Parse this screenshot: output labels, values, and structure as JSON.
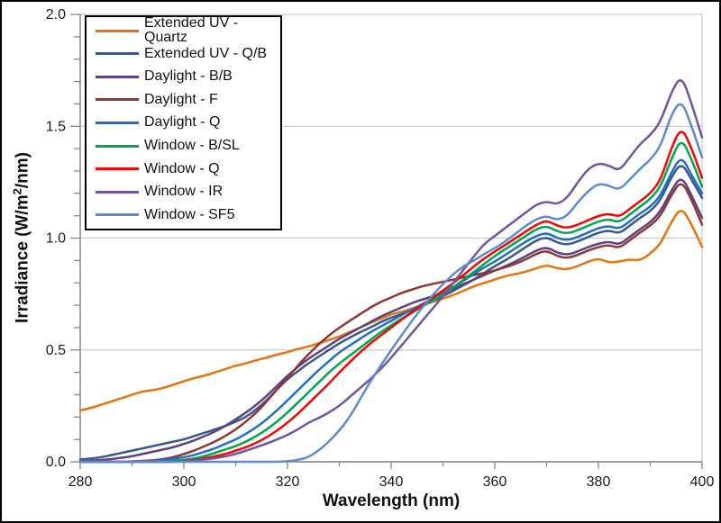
{
  "chart_data": {
    "type": "line",
    "title": "",
    "xlabel": "Wavelength (nm)",
    "ylabel": "Irradiance (W/m²/nm)",
    "ylabel_parts": {
      "pre": "Irradiance (W/m",
      "sup": "2",
      "post": "/nm)"
    },
    "xlim": [
      280,
      400
    ],
    "ylim": [
      0.0,
      2.0
    ],
    "x_major_ticks": [
      280,
      300,
      320,
      340,
      360,
      380,
      400
    ],
    "x_tick_labels": [
      "280",
      "300",
      "320",
      "340",
      "360",
      "380",
      "400"
    ],
    "x_minor_step": 10,
    "y_major_ticks": [
      0.0,
      0.5,
      1.0,
      1.5,
      2.0
    ],
    "y_tick_labels": [
      "0.0",
      "0.5",
      "1.0",
      "1.5",
      "2.0"
    ],
    "y_minor_step": 0.1,
    "grid": "horizontal-major-only",
    "legend_position": "upper-left-inside",
    "colors": {
      "axis": "#7f7f7f",
      "grid": "#c9c9c9",
      "tick_text": "#1a1a1a"
    },
    "x_start": 280,
    "x_step": 2,
    "series": [
      {
        "name": "Extended UV - Quartz",
        "color": "#e8730c",
        "values": [
          0.23,
          0.24,
          0.255,
          0.27,
          0.285,
          0.3,
          0.315,
          0.32,
          0.33,
          0.345,
          0.36,
          0.375,
          0.385,
          0.4,
          0.415,
          0.43,
          0.44,
          0.455,
          0.465,
          0.48,
          0.49,
          0.505,
          0.515,
          0.53,
          0.545,
          0.56,
          0.58,
          0.6,
          0.62,
          0.64,
          0.66,
          0.67,
          0.685,
          0.7,
          0.715,
          0.73,
          0.745,
          0.765,
          0.785,
          0.8,
          0.815,
          0.83,
          0.84,
          0.85,
          0.865,
          0.88,
          0.865,
          0.86,
          0.875,
          0.895,
          0.91,
          0.89,
          0.895,
          0.905,
          0.9,
          0.93,
          0.975,
          1.07,
          1.14,
          1.06,
          0.96
        ]
      },
      {
        "name": "Extended UV - Q/B",
        "color": "#38588f",
        "values": [
          0.01,
          0.015,
          0.02,
          0.03,
          0.04,
          0.05,
          0.06,
          0.07,
          0.08,
          0.09,
          0.1,
          0.115,
          0.13,
          0.145,
          0.16,
          0.18,
          0.2,
          0.235,
          0.275,
          0.325,
          0.37,
          0.405,
          0.44,
          0.47,
          0.5,
          0.53,
          0.555,
          0.58,
          0.6,
          0.625,
          0.645,
          0.66,
          0.68,
          0.7,
          0.72,
          0.74,
          0.765,
          0.79,
          0.815,
          0.845,
          0.875,
          0.9,
          0.93,
          0.96,
          0.99,
          1.005,
          0.98,
          0.97,
          0.985,
          1.005,
          1.025,
          1.035,
          1.02,
          1.055,
          1.09,
          1.12,
          1.17,
          1.27,
          1.34,
          1.26,
          1.18
        ]
      },
      {
        "name": "Daylight - B/B",
        "color": "#5c4282",
        "values": [
          0.0,
          0.005,
          0.008,
          0.012,
          0.018,
          0.025,
          0.035,
          0.045,
          0.055,
          0.065,
          0.08,
          0.095,
          0.115,
          0.135,
          0.16,
          0.19,
          0.22,
          0.255,
          0.295,
          0.34,
          0.385,
          0.425,
          0.46,
          0.49,
          0.52,
          0.55,
          0.575,
          0.6,
          0.625,
          0.65,
          0.67,
          0.69,
          0.71,
          0.725,
          0.74,
          0.755,
          0.775,
          0.795,
          0.815,
          0.835,
          0.855,
          0.875,
          0.895,
          0.92,
          0.945,
          0.96,
          0.935,
          0.925,
          0.94,
          0.96,
          0.975,
          0.985,
          0.97,
          1.005,
          1.04,
          1.07,
          1.12,
          1.21,
          1.28,
          1.19,
          1.09
        ]
      },
      {
        "name": "Daylight - F",
        "color": "#903634",
        "values": [
          0,
          0,
          0,
          0,
          0,
          0.002,
          0.004,
          0.006,
          0.012,
          0.02,
          0.035,
          0.05,
          0.07,
          0.09,
          0.115,
          0.145,
          0.18,
          0.22,
          0.27,
          0.325,
          0.375,
          0.43,
          0.48,
          0.525,
          0.565,
          0.6,
          0.63,
          0.66,
          0.69,
          0.715,
          0.735,
          0.755,
          0.77,
          0.785,
          0.795,
          0.805,
          0.815,
          0.825,
          0.835,
          0.845,
          0.855,
          0.87,
          0.885,
          0.905,
          0.93,
          0.945,
          0.92,
          0.91,
          0.925,
          0.945,
          0.96,
          0.97,
          0.955,
          0.99,
          1.025,
          1.055,
          1.1,
          1.19,
          1.26,
          1.17,
          1.06
        ]
      },
      {
        "name": "Daylight - Q",
        "color": "#1f6fc5",
        "values": [
          0,
          0,
          0,
          0,
          0,
          0,
          0.002,
          0.004,
          0.008,
          0.013,
          0.02,
          0.03,
          0.045,
          0.06,
          0.08,
          0.1,
          0.125,
          0.155,
          0.19,
          0.23,
          0.275,
          0.32,
          0.365,
          0.41,
          0.45,
          0.49,
          0.52,
          0.55,
          0.58,
          0.605,
          0.63,
          0.655,
          0.68,
          0.705,
          0.73,
          0.755,
          0.78,
          0.81,
          0.84,
          0.87,
          0.895,
          0.925,
          0.955,
          0.985,
          1.01,
          1.025,
          1.0,
          0.99,
          1.005,
          1.025,
          1.045,
          1.055,
          1.04,
          1.075,
          1.11,
          1.14,
          1.19,
          1.29,
          1.37,
          1.28,
          1.2
        ]
      },
      {
        "name": "Window - B/SL",
        "color": "#00a550",
        "values": [
          0,
          0,
          0,
          0,
          0,
          0,
          0,
          0,
          0,
          0.004,
          0.008,
          0.015,
          0.025,
          0.04,
          0.055,
          0.07,
          0.09,
          0.115,
          0.145,
          0.18,
          0.22,
          0.265,
          0.31,
          0.355,
          0.4,
          0.44,
          0.475,
          0.51,
          0.545,
          0.58,
          0.61,
          0.64,
          0.665,
          0.695,
          0.72,
          0.75,
          0.78,
          0.815,
          0.85,
          0.885,
          0.92,
          0.95,
          0.98,
          1.01,
          1.04,
          1.055,
          1.03,
          1.02,
          1.035,
          1.055,
          1.075,
          1.085,
          1.07,
          1.105,
          1.14,
          1.175,
          1.23,
          1.35,
          1.45,
          1.35,
          1.23
        ]
      },
      {
        "name": "Window - Q",
        "color": "#fe0000",
        "values": [
          0,
          0,
          0,
          0,
          0,
          0,
          0,
          0,
          0,
          0,
          0.004,
          0.008,
          0.015,
          0.025,
          0.035,
          0.05,
          0.065,
          0.085,
          0.11,
          0.14,
          0.175,
          0.215,
          0.26,
          0.305,
          0.35,
          0.4,
          0.445,
          0.49,
          0.53,
          0.565,
          0.6,
          0.635,
          0.67,
          0.7,
          0.735,
          0.765,
          0.8,
          0.835,
          0.875,
          0.91,
          0.94,
          0.97,
          1.0,
          1.03,
          1.06,
          1.08,
          1.055,
          1.045,
          1.06,
          1.08,
          1.1,
          1.11,
          1.095,
          1.13,
          1.165,
          1.2,
          1.26,
          1.4,
          1.5,
          1.4,
          1.27
        ]
      },
      {
        "name": "Window - IR",
        "color": "#6e579e",
        "values": [
          0,
          0,
          0,
          0,
          0,
          0,
          0,
          0,
          0,
          0,
          0.003,
          0.006,
          0.01,
          0.016,
          0.024,
          0.035,
          0.05,
          0.065,
          0.082,
          0.1,
          0.12,
          0.145,
          0.175,
          0.195,
          0.22,
          0.25,
          0.29,
          0.33,
          0.37,
          0.415,
          0.465,
          0.52,
          0.575,
          0.63,
          0.685,
          0.74,
          0.8,
          0.86,
          0.92,
          0.975,
          1.01,
          1.045,
          1.08,
          1.115,
          1.15,
          1.165,
          1.15,
          1.18,
          1.25,
          1.31,
          1.335,
          1.325,
          1.3,
          1.36,
          1.42,
          1.46,
          1.52,
          1.65,
          1.73,
          1.6,
          1.45
        ]
      },
      {
        "name": "Window - SF5",
        "color": "#5e8bcd",
        "values": [
          0,
          0,
          0,
          0,
          0,
          0,
          0,
          0,
          0,
          0,
          0,
          0,
          0,
          0,
          0,
          0,
          0,
          0,
          0,
          0,
          0.003,
          0.008,
          0.02,
          0.05,
          0.09,
          0.14,
          0.2,
          0.28,
          0.36,
          0.43,
          0.5,
          0.565,
          0.63,
          0.69,
          0.745,
          0.795,
          0.84,
          0.875,
          0.9,
          0.93,
          0.955,
          0.985,
          1.02,
          1.055,
          1.085,
          1.1,
          1.08,
          1.1,
          1.16,
          1.21,
          1.245,
          1.235,
          1.215,
          1.26,
          1.31,
          1.35,
          1.41,
          1.55,
          1.62,
          1.5,
          1.36
        ]
      }
    ]
  }
}
